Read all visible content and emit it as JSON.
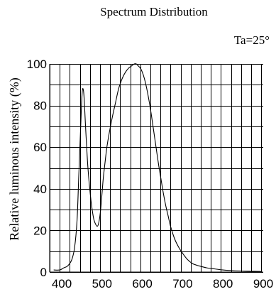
{
  "chart_data": {
    "type": "line",
    "title": "Spectrum Distribution",
    "annotation": "Ta=25°",
    "ylabel": "Relative luminous intensity (%)",
    "xlim": [
      370,
      900
    ],
    "ylim": [
      0,
      100
    ],
    "x_ticks": [
      400,
      500,
      600,
      700,
      800,
      900
    ],
    "y_ticks": [
      0,
      20,
      40,
      60,
      80,
      100
    ],
    "grid": true,
    "series": [
      {
        "x": [
          380,
          395,
          405,
          415,
          425,
          432,
          438,
          442,
          446,
          449,
          451,
          453,
          455,
          457,
          459,
          461,
          463,
          465,
          468,
          471,
          474,
          477,
          480,
          484,
          488,
          491,
          494,
          497,
          500,
          503,
          507,
          512,
          518,
          525,
          533,
          541,
          550,
          558,
          566,
          573,
          580,
          585,
          590,
          595,
          600,
          605,
          610,
          616,
          622,
          628,
          634,
          640,
          646,
          652,
          658,
          664,
          670,
          680,
          690,
          700,
          712,
          725,
          740,
          760,
          780,
          800,
          830,
          860,
          895
        ],
        "y": [
          1,
          1,
          2,
          3,
          6,
          12,
          25,
          45,
          65,
          80,
          87,
          88,
          85,
          78,
          70,
          63,
          56,
          50,
          43,
          37,
          32,
          28,
          25,
          23,
          22,
          23,
          26,
          31,
          38,
          45,
          52,
          60,
          67,
          74,
          81,
          88,
          93,
          96,
          98,
          99,
          100,
          100,
          99,
          98,
          96,
          93,
          89,
          83,
          76,
          68,
          60,
          52,
          45,
          38,
          32,
          27,
          22,
          16,
          12,
          9,
          6,
          4,
          3,
          2,
          1.5,
          1,
          0.6,
          0.4,
          0.3
        ]
      }
    ]
  }
}
